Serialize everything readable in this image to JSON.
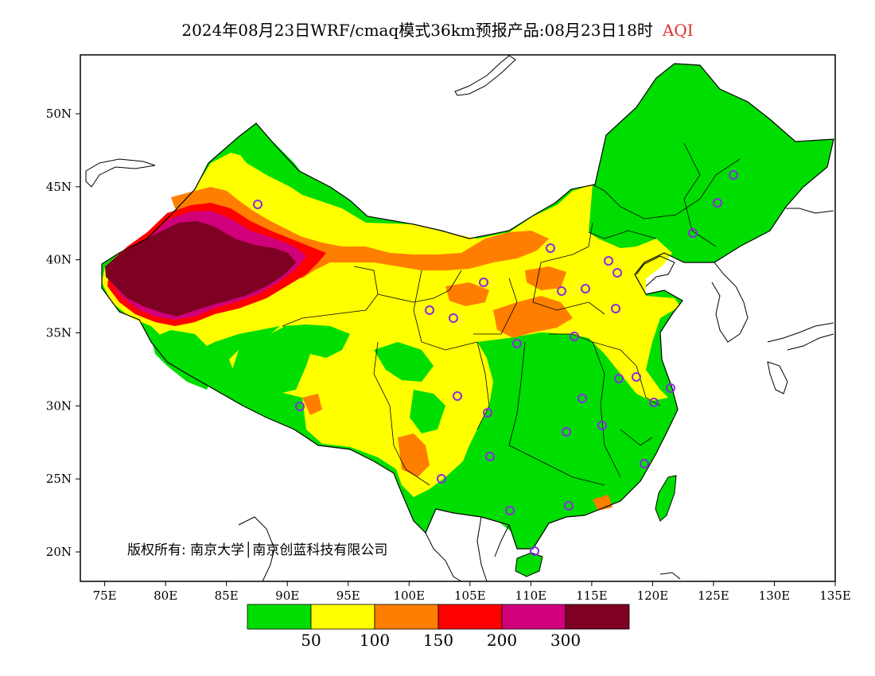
{
  "title": {
    "text": "2024年08月23日WRF/cmaq模式36km预报产品:08月23日18时",
    "variable": "AQI"
  },
  "axes": {
    "lon_ticks": [
      "75E",
      "80E",
      "85E",
      "90E",
      "95E",
      "100E",
      "105E",
      "110E",
      "115E",
      "120E",
      "125E",
      "130E",
      "135E"
    ],
    "lat_ticks": [
      "20N",
      "25N",
      "30N",
      "35N",
      "40N",
      "45N",
      "50N"
    ]
  },
  "legend": {
    "thresholds": [
      "50",
      "100",
      "150",
      "200",
      "300"
    ],
    "colors": [
      "#00dd00",
      "#ffff00",
      "#ff7e00",
      "#ff0000",
      "#d0007a",
      "#7e0023"
    ]
  },
  "copyright": "版权所有: 南京大学│南京创蓝科技有限公司",
  "colors": {
    "good": "#00dd00",
    "moderate": "#ffff00",
    "usg": "#ff7e00",
    "unhealthy": "#ff0000",
    "very_unhealthy": "#d0007a",
    "hazardous": "#7e0023",
    "station_marker": "#8a2be2"
  }
}
